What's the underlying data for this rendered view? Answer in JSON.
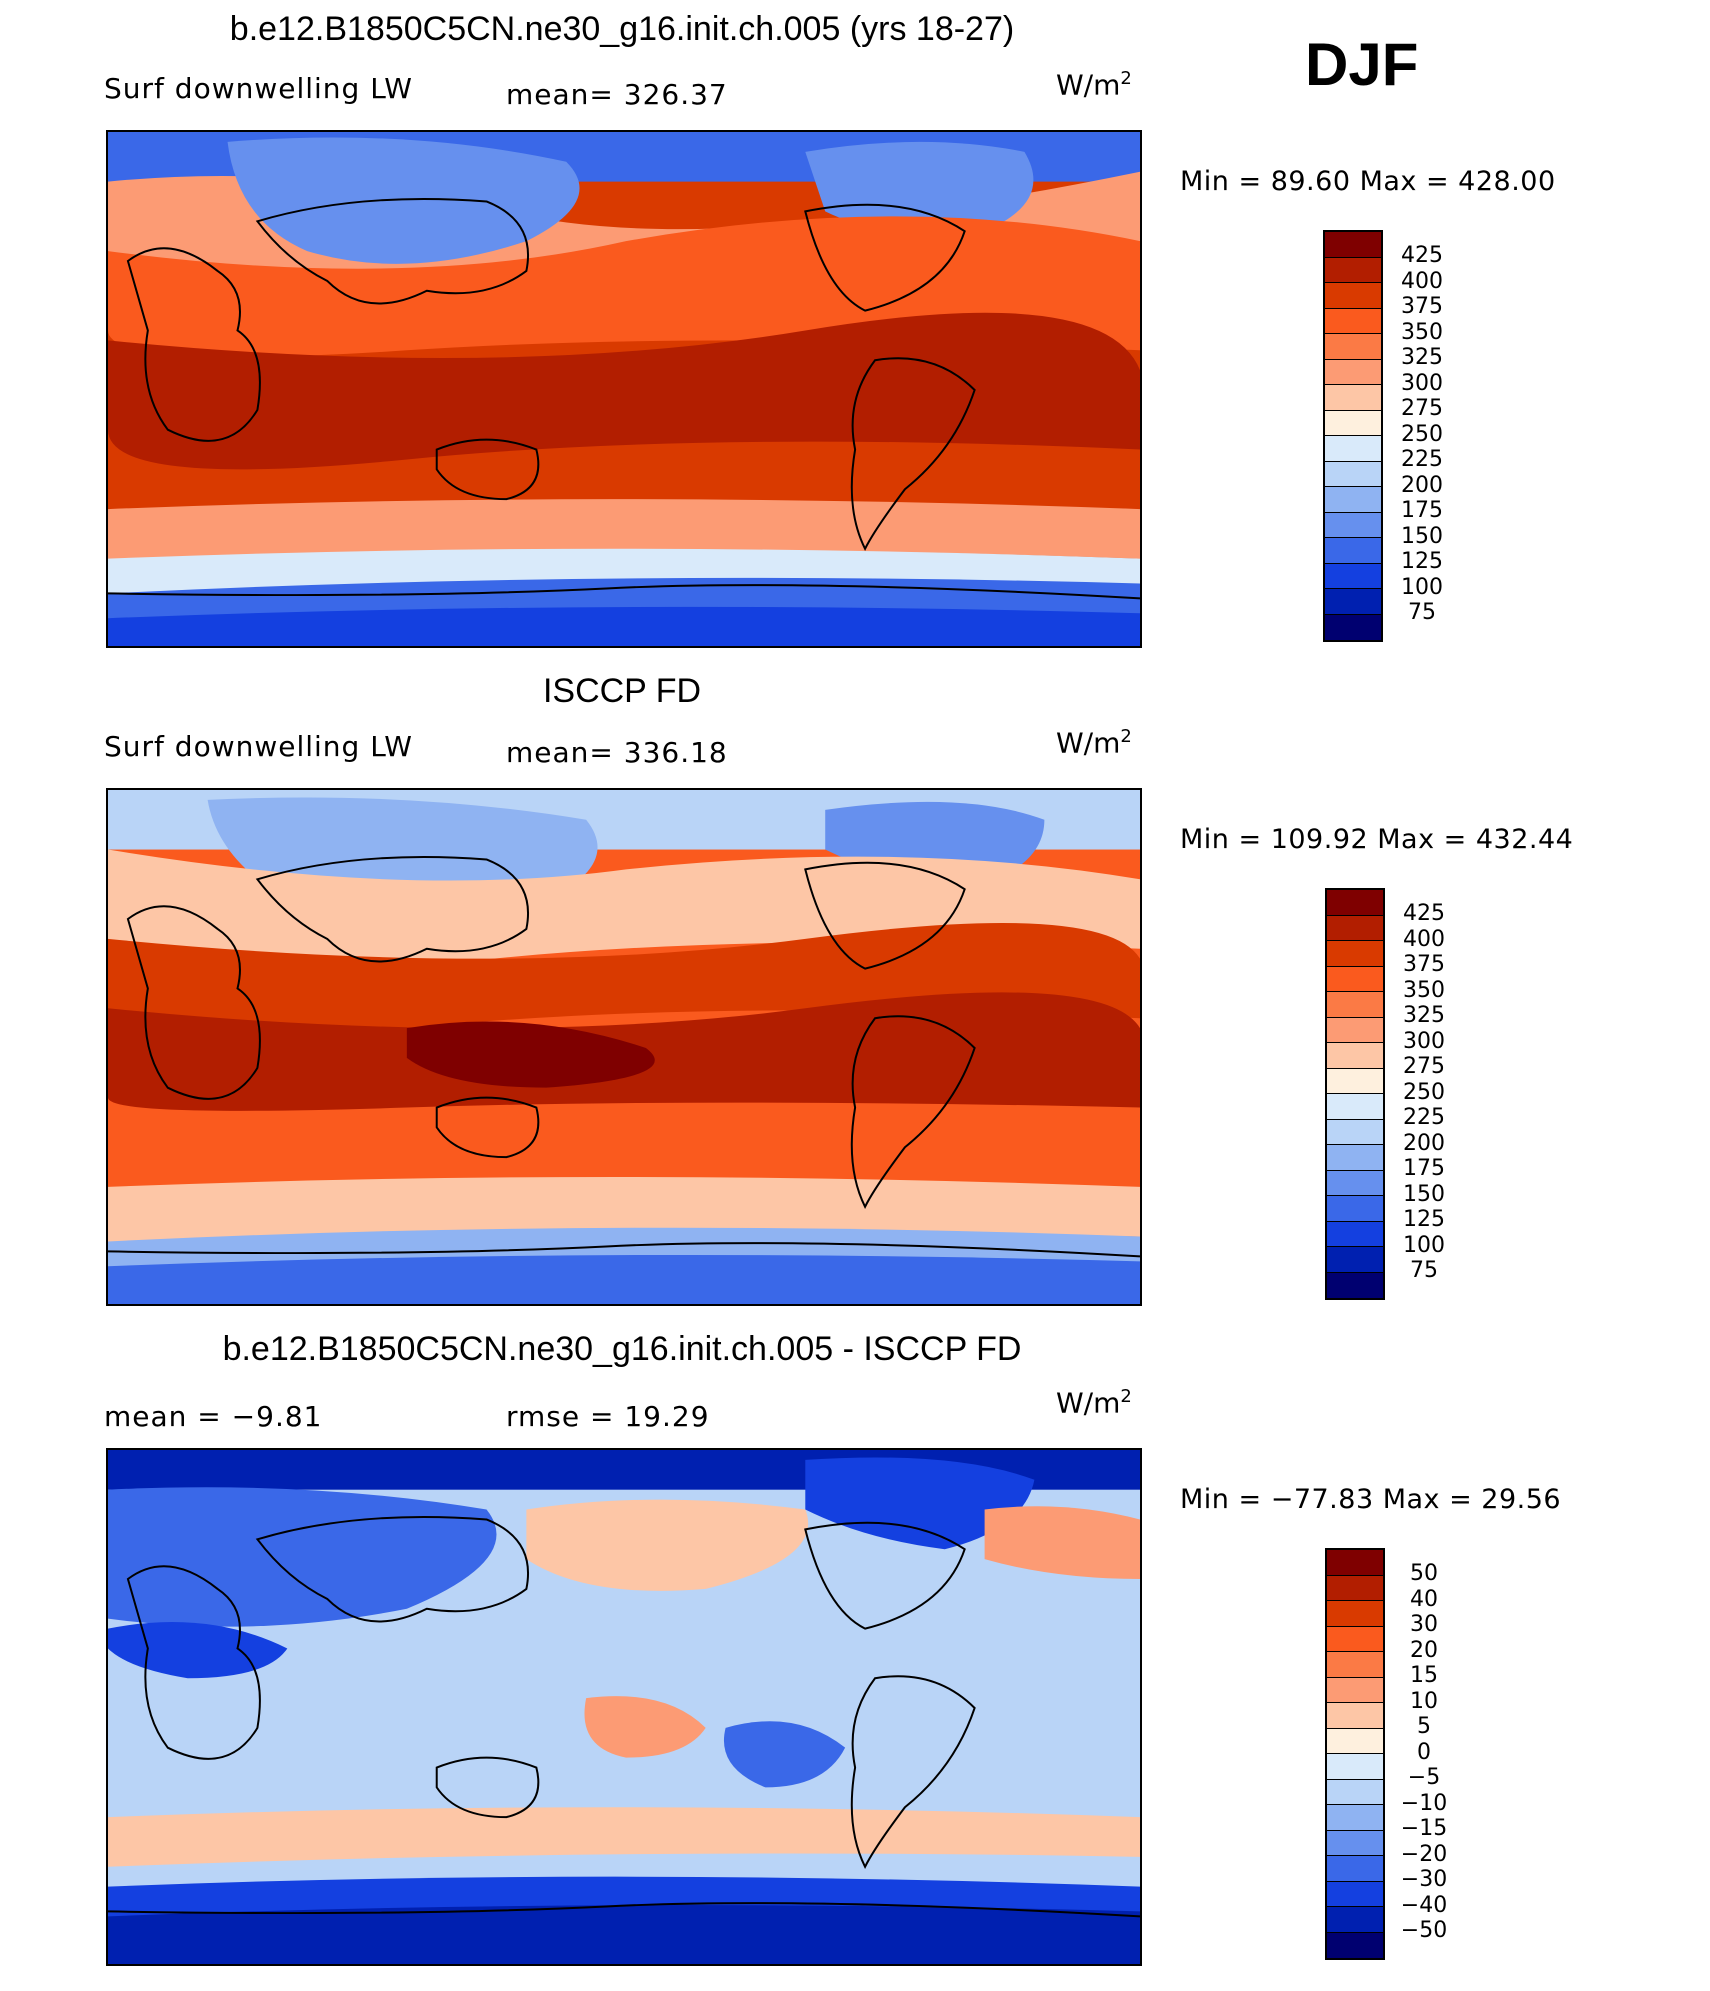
{
  "season": "DJF",
  "panels": [
    {
      "title": "b.e12.B1850C5CN.ne30_g16.init.ch.005 (yrs 18-27)",
      "left_label": "Surf downwelling LW",
      "stat_label": "mean= 326.37",
      "units": "W/m",
      "units_sup": "2",
      "minmax": "Min =  89.60 Max = 428.00",
      "colorbar_labels": [
        "425",
        "400",
        "375",
        "350",
        "325",
        "300",
        "275",
        "250",
        "225",
        "200",
        "175",
        "150",
        "125",
        "100",
        "75"
      ]
    },
    {
      "title": "ISCCP FD",
      "left_label": "Surf downwelling LW",
      "stat_label": "mean= 336.18",
      "units": "W/m",
      "units_sup": "2",
      "minmax": "Min = 109.92 Max = 432.44",
      "colorbar_labels": [
        "425",
        "400",
        "375",
        "350",
        "325",
        "300",
        "275",
        "250",
        "225",
        "200",
        "175",
        "150",
        "125",
        "100",
        "75"
      ]
    },
    {
      "title": "b.e12.B1850C5CN.ne30_g16.init.ch.005 - ISCCP FD",
      "left_label": "mean =   −9.81",
      "stat_label": "rmse =   19.29",
      "units": "W/m",
      "units_sup": "2",
      "minmax": "Min = −77.83 Max =   29.56",
      "colorbar_labels": [
        "50",
        "40",
        "30",
        "20",
        "15",
        "10",
        "5",
        "0",
        "−5",
        "−10",
        "−15",
        "−20",
        "−30",
        "−40",
        "−50"
      ]
    }
  ],
  "colors": {
    "scale": [
      "#7f0000",
      "#b21e00",
      "#d93a00",
      "#fa5a1e",
      "#fb7a45",
      "#fc9b74",
      "#fdc6a6",
      "#fef0de",
      "#d9eafa",
      "#b9d4f7",
      "#8fb3f2",
      "#6690ee",
      "#3a68e8",
      "#1440e0",
      "#0020b0",
      "#000070"
    ]
  }
}
